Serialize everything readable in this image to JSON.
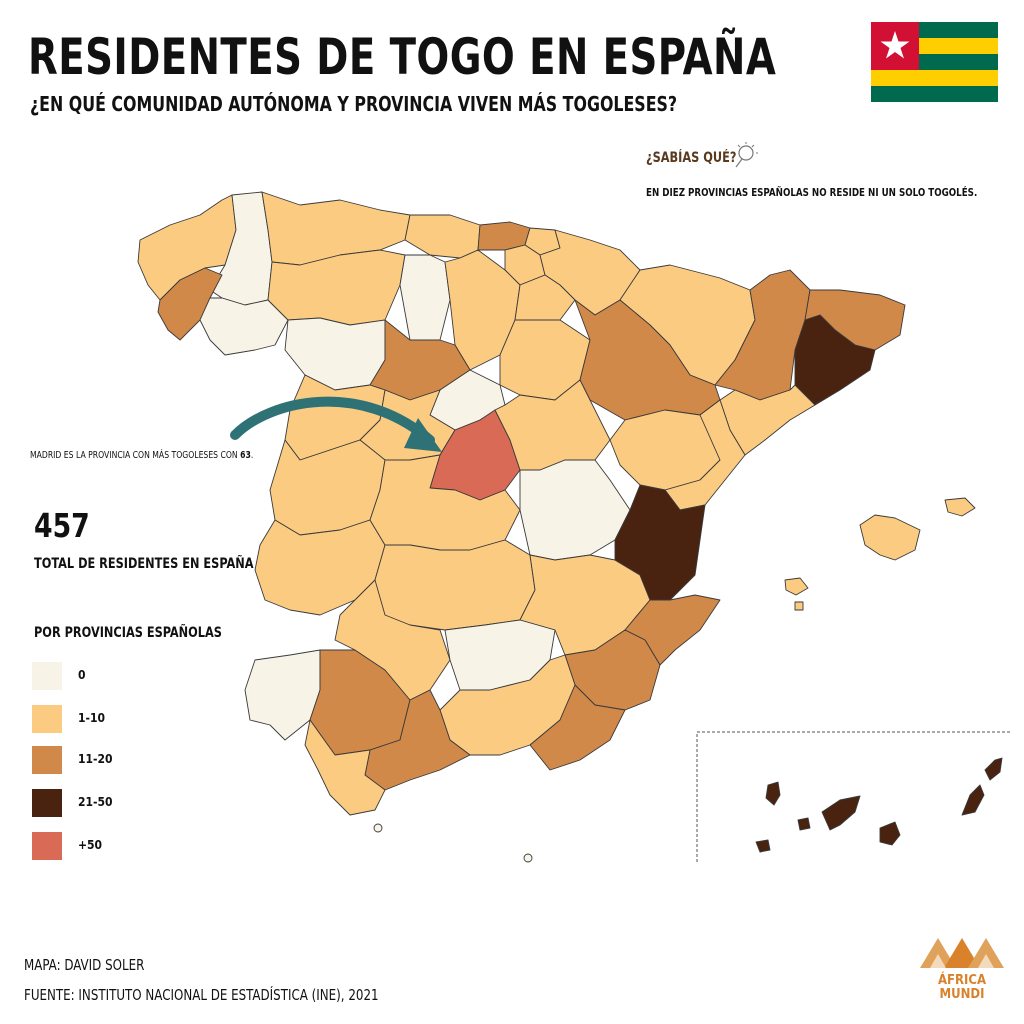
{
  "header": {
    "title": "RESIDENTES DE TOGO EN ESPAÑA",
    "subtitle": "¿EN QUÉ COMUNIDAD AUTÓNOMA Y PROVINCIA VIVEN MÁS TOGOLESES?"
  },
  "did_you_know": {
    "heading": "¿SABÍAS QUÉ?",
    "text": "EN DIEZ PROVINCIAS ESPAÑOLAS NO RESIDE NI UN SOLO TOGOLÉS."
  },
  "madrid_note": {
    "prefix": "MADRID ES LA PROVINCIA CON MÁS TOGOLESES CON ",
    "value": "63",
    "suffix": "."
  },
  "total": {
    "value": "457",
    "label": "TOTAL DE RESIDENTES EN ESPAÑA"
  },
  "legend": {
    "title": "POR PROVINCIAS ESPAÑOLAS",
    "items": [
      {
        "label": "0",
        "color": "#f7f3e6"
      },
      {
        "label": "1-10",
        "color": "#fccb82"
      },
      {
        "label": "11-20",
        "color": "#d1894a"
      },
      {
        "label": "21-50",
        "color": "#4a2210"
      },
      {
        "label": "+50",
        "color": "#d86a56"
      }
    ]
  },
  "credits": {
    "map": "MAPA: DAVID SOLER",
    "source": "FUENTE: INSTITUTO NACIONAL DE ESTADÍSTICA (INE), 2021"
  },
  "logo": {
    "line1": "ÁFRICA",
    "line2": "MUNDI"
  },
  "colors": {
    "zero": "#f7f3e6",
    "low": "#fccb82",
    "mid": "#d1894a",
    "high": "#4a2210",
    "max": "#d86a56",
    "arrow": "#2f7276",
    "border": "#333333"
  }
}
